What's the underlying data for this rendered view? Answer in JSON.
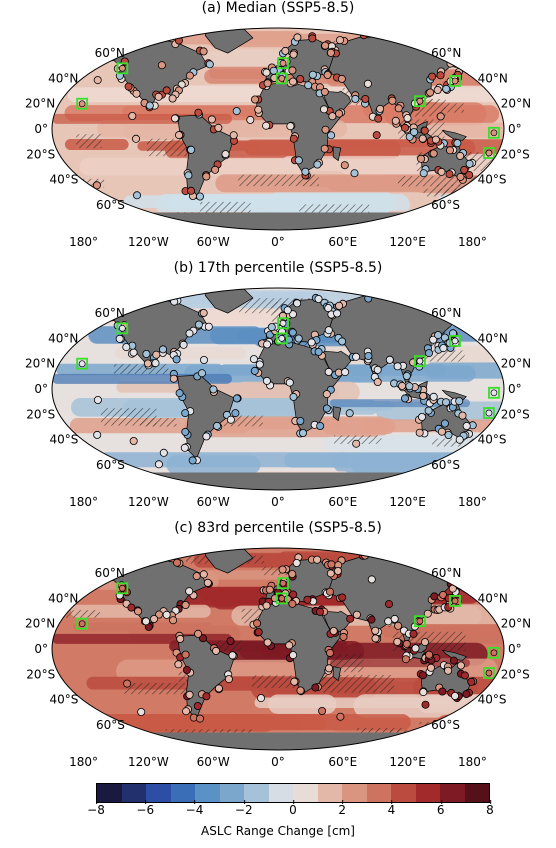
{
  "panels": [
    {
      "id": "a",
      "title": "(a) Median (SSP5-8.5)",
      "theme": "median"
    },
    {
      "id": "b",
      "title": "(b) 17th percentile (SSP5-8.5)",
      "theme": "low"
    },
    {
      "id": "c",
      "title": "(c) 83rd percentile (SSP5-8.5)",
      "theme": "high"
    }
  ],
  "lat_labels": [
    "60°N",
    "40°N",
    "20°N",
    "0°",
    "20°S",
    "40°S",
    "60°S"
  ],
  "lon_labels": [
    "180°",
    "120°W",
    "60°W",
    "0°",
    "60°E",
    "120°E",
    "180°"
  ],
  "colorbar": {
    "label": "ASLC Range Change [cm]",
    "ticks": [
      "−8",
      "−6",
      "−4",
      "−2",
      "0",
      "2",
      "4",
      "6",
      "8"
    ],
    "colors": [
      "#1a1a40",
      "#22306e",
      "#2c4ea6",
      "#3a6fb8",
      "#5a92c6",
      "#7ba7cc",
      "#a4c2d8",
      "#d6dde4",
      "#e8dcd6",
      "#e3b8a8",
      "#d99580",
      "#cd735f",
      "#bb4b3e",
      "#a22a2b",
      "#7e1a24",
      "#551019"
    ]
  },
  "markers": {
    "highlighted_sites": 8,
    "highlight_color": "#3adf2a"
  }
}
